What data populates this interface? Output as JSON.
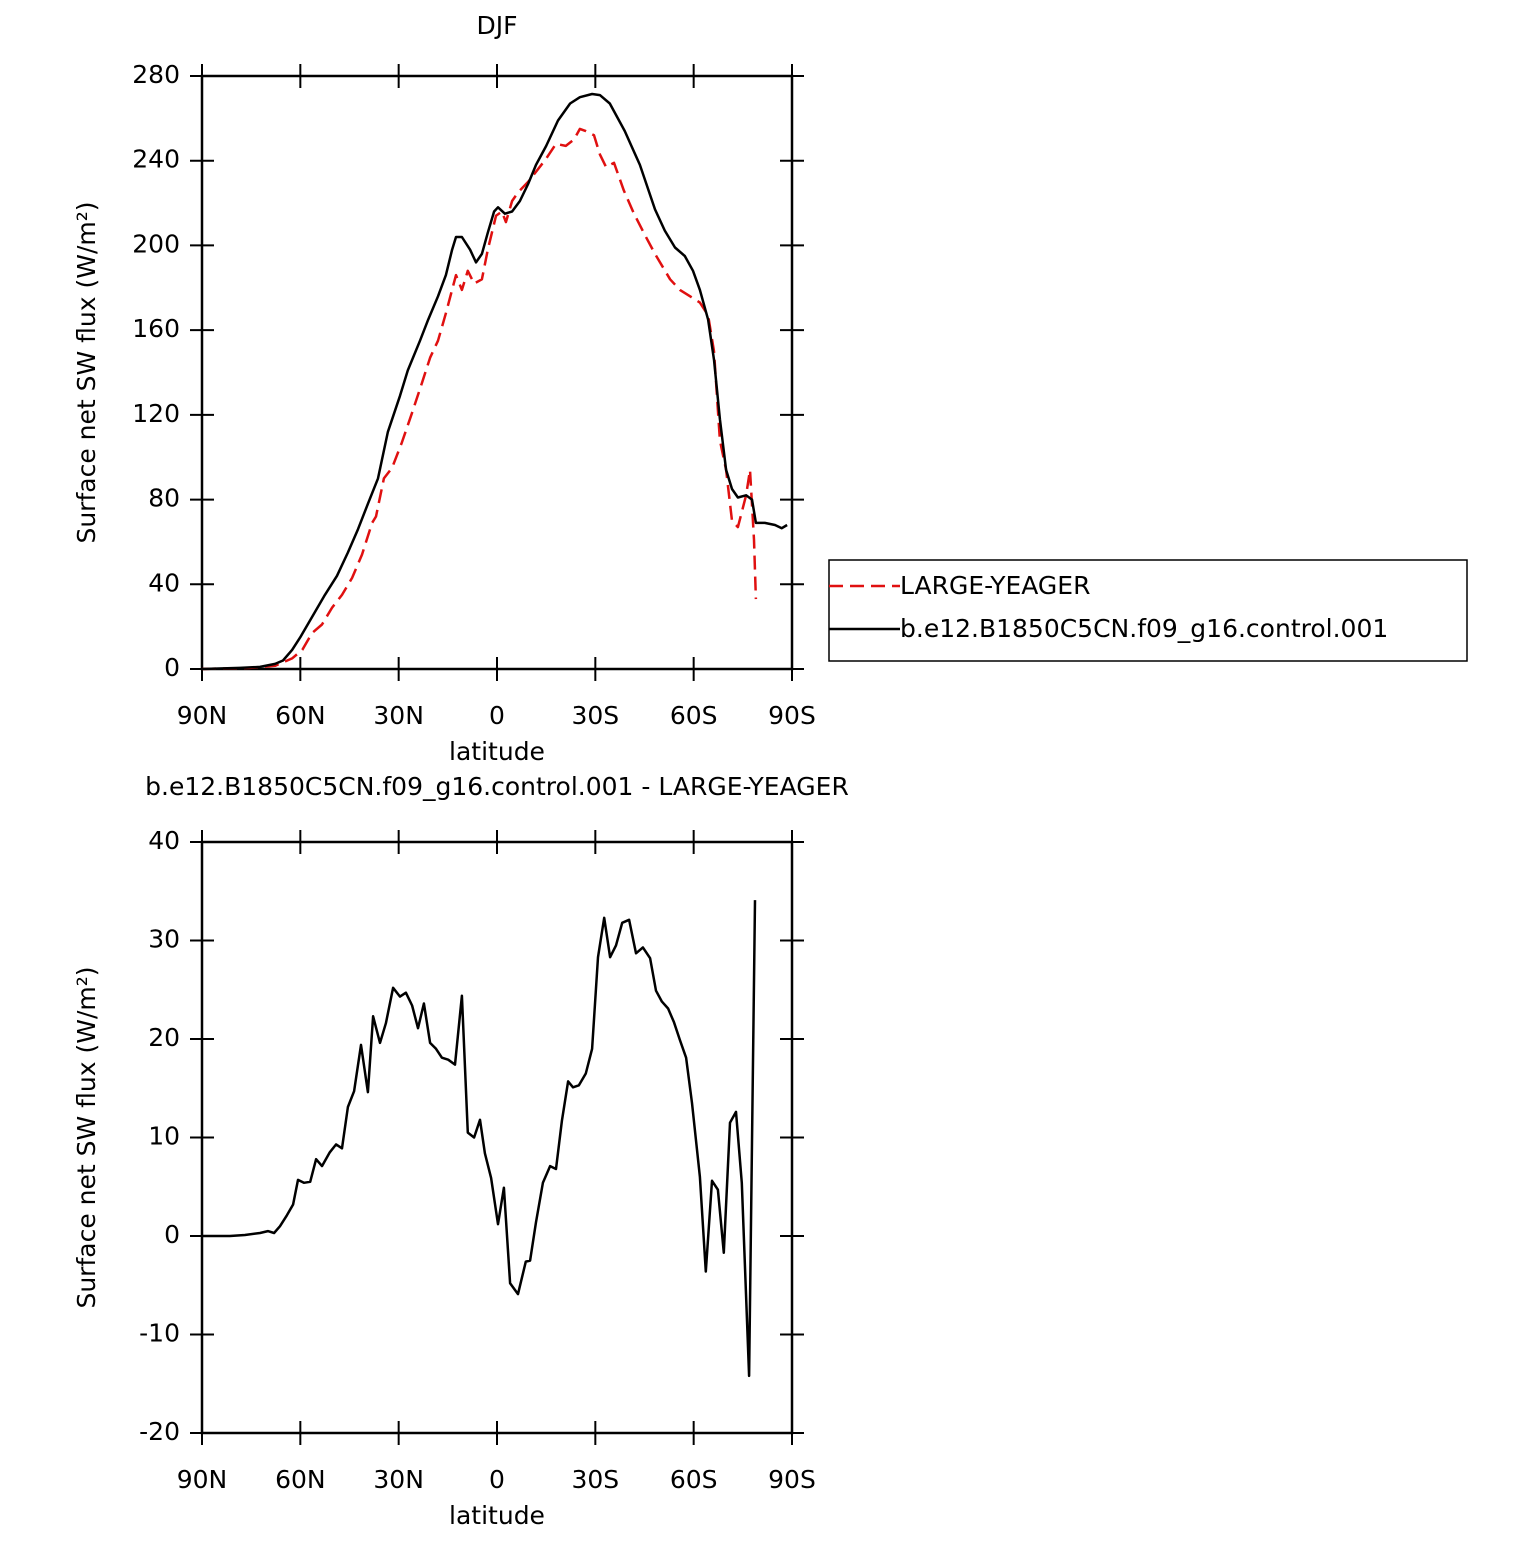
{
  "chart_data": [
    {
      "type": "line",
      "title": "DJF",
      "xlabel": "latitude",
      "ylabel": "Surface net SW flux (W/m²)",
      "xlim": [
        90,
        -90
      ],
      "ylim": [
        0,
        280
      ],
      "xticks": [
        {
          "value": 90,
          "label": "90N"
        },
        {
          "value": 60,
          "label": "60N"
        },
        {
          "value": 30,
          "label": "30N"
        },
        0,
        {
          "value": -30,
          "label": "30S"
        },
        {
          "value": -60,
          "label": "60S"
        },
        {
          "value": -90,
          "label": "90S"
        }
      ],
      "yticks": [
        0,
        40,
        80,
        120,
        160,
        200,
        240,
        280
      ],
      "legend": "right",
      "series": [
        {
          "name": "LARGE-YEAGER",
          "color": "#e01010",
          "line_style": "dashed",
          "x": [
            90,
            75.4,
            67.7,
            62.5,
            59.4,
            56.4,
            53.4,
            50.3,
            47.3,
            44.2,
            41.2,
            38.1,
            36.9,
            34.5,
            32,
            29,
            25.9,
            22.9,
            20.4,
            18,
            15.6,
            12.5,
            10.7,
            8.9,
            7,
            4.6,
            2.8,
            0.3,
            -1.5,
            -2.7,
            -4.6,
            -6.4,
            -9.5,
            -12.5,
            -15,
            -18,
            -21,
            -23.5,
            -25.3,
            -27.1,
            -29.6,
            -31.4,
            -33.3,
            -35.7,
            -38.7,
            -41.8,
            -45.1,
            -48.2,
            -52.8,
            -55.8,
            -58.9,
            -61.9,
            -64.4,
            -66.2,
            -68,
            -69.9,
            -71.7,
            -73.5,
            -76,
            -77.2,
            -78.4,
            -79
          ],
          "values": [
            0,
            0.5,
            1.5,
            5,
            9,
            17,
            21,
            29,
            35,
            43,
            54,
            69,
            72,
            90,
            95,
            107,
            121,
            135,
            147,
            155,
            168,
            186,
            179,
            188,
            182,
            184,
            198,
            214,
            216,
            211,
            221,
            225,
            230,
            236,
            241,
            248,
            247,
            250,
            255,
            254,
            252,
            243,
            237,
            239,
            226,
            215,
            205,
            196,
            184,
            179,
            176,
            173,
            167,
            150,
            108,
            94,
            70,
            67,
            82,
            94,
            61,
            33
          ]
        },
        {
          "name": "b.e12.B1850C5CN.f09_g16.control.001",
          "color": "#000000",
          "line_style": "solid",
          "x": [
            90,
            78.4,
            72.3,
            67.7,
            65.3,
            62.5,
            60,
            55.5,
            52.5,
            48.8,
            45.5,
            42.4,
            39.4,
            36.3,
            33.3,
            29.6,
            27.2,
            23.5,
            21,
            18,
            15.6,
            13.7,
            12.5,
            10.7,
            8.2,
            6.4,
            4.6,
            2.8,
            0.9,
            -0.3,
            -2.4,
            -4.6,
            -7,
            -9.5,
            -11.9,
            -15,
            -18.6,
            -22.3,
            -25.3,
            -29,
            -31.4,
            -34.4,
            -39,
            -43.6,
            -48.2,
            -51.2,
            -54.3,
            -57.3,
            -59.8,
            -61.9,
            -64.4,
            -66.2,
            -68,
            -69.9,
            -71.7,
            -73.5,
            -76,
            -77.8,
            -79,
            -81.7,
            -84.8,
            -86.9,
            -88.5
          ],
          "values": [
            0,
            0.5,
            1,
            2.4,
            4,
            9,
            15,
            27,
            35,
            44,
            55,
            66,
            78,
            90,
            112,
            129,
            141,
            155,
            165,
            176,
            186,
            198,
            204,
            204,
            198,
            192,
            196,
            206,
            216,
            218,
            215,
            216,
            221,
            229,
            238,
            247,
            259,
            267,
            270,
            271.5,
            271,
            267,
            254,
            238,
            217,
            207,
            199,
            195,
            188,
            179,
            165,
            146,
            118,
            94,
            85,
            81,
            82,
            80,
            69,
            69,
            68,
            66.5,
            68
          ]
        }
      ]
    },
    {
      "type": "line",
      "title": "b.e12.B1850C5CN.f09_g16.control.001 - LARGE-YEAGER",
      "xlabel": "latitude",
      "ylabel": "Surface net SW flux (W/m²)",
      "xlim": [
        90,
        -90
      ],
      "ylim": [
        -20,
        40
      ],
      "xticks": [
        {
          "value": 90,
          "label": "90N"
        },
        {
          "value": 60,
          "label": "60N"
        },
        {
          "value": 30,
          "label": "30N"
        },
        0,
        {
          "value": -30,
          "label": "30S"
        },
        {
          "value": -60,
          "label": "60S"
        },
        {
          "value": -90,
          "label": "90S"
        }
      ],
      "yticks": [
        -20,
        -10,
        0,
        10,
        20,
        30,
        40
      ],
      "series": [
        {
          "color": "#000000",
          "line_style": "solid",
          "x": [
            90,
            81.5,
            76.9,
            72.3,
            69.9,
            68,
            66.2,
            64.1,
            62.2,
            60.7,
            58.9,
            57,
            55.2,
            53.4,
            51,
            49.1,
            47.3,
            45.5,
            43.6,
            41.5,
            39.4,
            37.8,
            35.7,
            33.9,
            31.7,
            29.6,
            27.8,
            25.9,
            24.1,
            22.3,
            20.4,
            18.6,
            16.8,
            14.9,
            12.8,
            10.7,
            8.9,
            7,
            5.2,
            3.7,
            1.8,
            -0.3,
            -2.1,
            -4,
            -6.4,
            -8.8,
            -10.1,
            -11.9,
            -14,
            -16.2,
            -18,
            -19.8,
            -21.7,
            -23.2,
            -25,
            -27.1,
            -29,
            -30.8,
            -32.7,
            -34.5,
            -36.3,
            -38.2,
            -40.3,
            -42.4,
            -44.5,
            -46.7,
            -48.5,
            -50.3,
            -52.2,
            -54,
            -55.8,
            -57.7,
            -59.5,
            -61.9,
            -63.7,
            -65.6,
            -67.4,
            -69.2,
            -71.1,
            -72.9,
            -74.7,
            -76.9,
            -78.7
          ],
          "values": [
            0,
            0,
            0.1,
            0.3,
            0.5,
            0.3,
            1,
            2.1,
            3.2,
            5.7,
            5.4,
            5.5,
            7.8,
            7.1,
            8.5,
            9.3,
            8.9,
            13.1,
            14.7,
            19.4,
            14.6,
            22.3,
            19.6,
            21.6,
            25.2,
            24.3,
            24.7,
            23.4,
            21.1,
            23.6,
            19.6,
            19,
            18.1,
            17.9,
            17.4,
            24.4,
            10.5,
            10,
            11.8,
            8.4,
            5.9,
            1.2,
            4.9,
            -4.8,
            -5.9,
            -2.6,
            -2.5,
            1.4,
            5.4,
            7.1,
            6.8,
            11.7,
            15.7,
            15.1,
            15.3,
            16.5,
            19,
            28.3,
            32.3,
            28.3,
            29.5,
            31.8,
            32.1,
            28.7,
            29.3,
            28.2,
            24.9,
            23.8,
            23.1,
            21.7,
            19.9,
            18.1,
            13.5,
            6,
            -3.6,
            5.6,
            4.7,
            -1.7,
            11.5,
            12.6,
            5.4,
            -14.2,
            34.1
          ]
        }
      ]
    }
  ]
}
